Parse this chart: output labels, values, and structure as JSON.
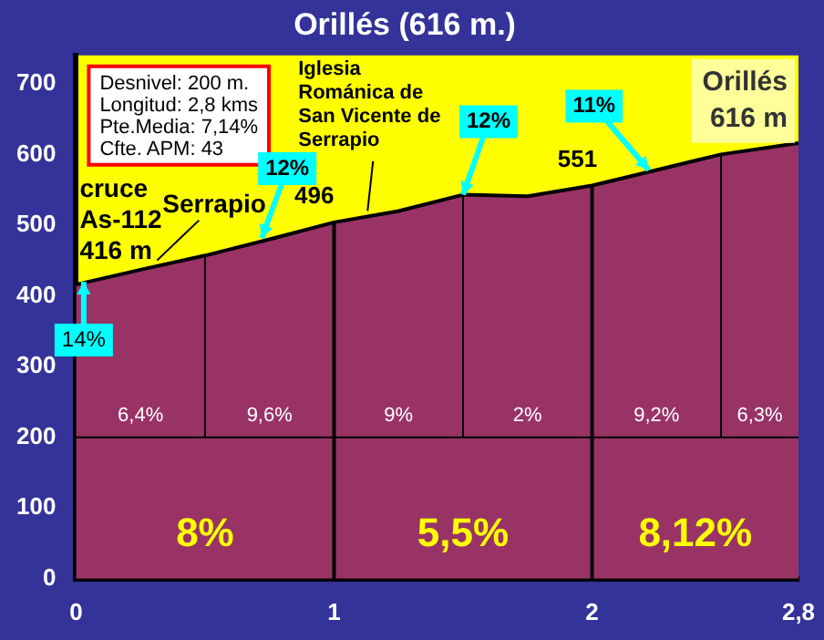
{
  "chart_data": {
    "type": "area",
    "title": "Orillés (616 m.)",
    "x": [
      0,
      0.25,
      0.5,
      0.75,
      1,
      1.25,
      1.5,
      1.75,
      2,
      2.25,
      2.5,
      2.8
    ],
    "series": [
      {
        "color": "#993366",
        "values": [
          416,
          437,
          457,
          480,
          504,
          520,
          543,
          541,
          556,
          578,
          600,
          616
        ]
      }
    ],
    "xlim": [
      0,
      2.8
    ],
    "xticks": [
      0,
      1,
      2,
      {
        "value": 2.8,
        "label": "2,8"
      }
    ],
    "ylim": [
      0,
      740
    ],
    "yticks": [
      0,
      100,
      200,
      300,
      400,
      500,
      600,
      700
    ],
    "grid": false,
    "legend": false,
    "marker": "none",
    "ref_lines": [
      {
        "axis": "x",
        "value": 0.5
      },
      {
        "axis": "x",
        "value": 1
      },
      {
        "axis": "x",
        "value": 1.5
      },
      {
        "axis": "x",
        "value": 2
      },
      {
        "axis": "x",
        "value": 2.5
      },
      {
        "axis": "y",
        "value": 200
      }
    ],
    "annotations": [
      "Desnivel: 200 m.\nLongitud: 2,8 kms\nPte.Media: 7,14%\nCfte. APM: 43",
      {
        "text": "cruce\nAs-112\n416 m",
        "x": 0,
        "y": 416
      },
      {
        "text": "Serrapio",
        "x": 0.3,
        "y": 445
      },
      {
        "text": "Iglesia\nRománica de\nSan Vicente de\nSerrapio",
        "x": 1.13,
        "y": 515
      },
      {
        "text": "496",
        "x": 0.98,
        "y": 504
      },
      {
        "text": "551",
        "x": 2.0,
        "y": 556
      },
      {
        "text": "14%",
        "x": 0.03,
        "y": 420
      },
      {
        "text": "12%",
        "x": 0.72,
        "y": 482
      },
      {
        "text": "12%",
        "x": 1.5,
        "y": 543
      },
      {
        "text": "11%",
        "x": 2.22,
        "y": 578
      },
      "6,4%",
      "9,6%",
      "9%",
      "2%",
      "9,2%",
      "6,3%",
      "8%",
      "5,5%",
      "8,12%",
      {
        "text": "Orillés\n616 m",
        "x": 2.8,
        "y": 616
      }
    ]
  }
}
